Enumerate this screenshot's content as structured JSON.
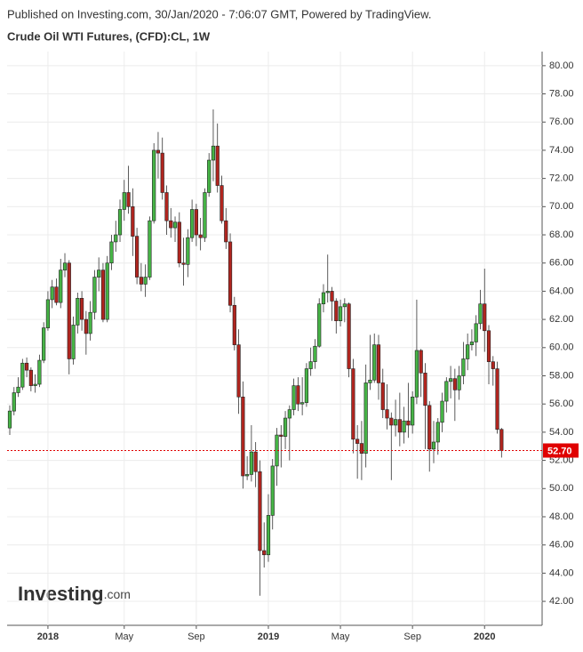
{
  "header": {
    "published": "Published on Investing.com, 30/Jan/2020 - 7:06:07 GMT, Powered by TradingView.",
    "instrument": "Crude Oil WTI Futures, (CFD):CL, 1W"
  },
  "logo": {
    "name": "Investing",
    "suffix": ".com"
  },
  "chart_data": {
    "type": "candlestick",
    "categories": [
      null,
      null,
      null,
      null,
      null,
      null,
      null,
      null,
      null,
      "2018",
      null,
      null,
      null,
      null,
      null,
      null,
      null,
      null,
      null,
      null,
      null,
      null,
      null,
      null,
      null,
      null,
      null,
      "May",
      null,
      null,
      null,
      null,
      null,
      null,
      null,
      null,
      null,
      null,
      null,
      null,
      null,
      null,
      null,
      null,
      "Sep",
      null,
      null,
      null,
      null,
      null,
      null,
      null,
      null,
      null,
      null,
      null,
      null,
      null,
      null,
      null,
      null,
      "2019",
      null,
      null,
      null,
      null,
      null,
      null,
      null,
      null,
      null,
      null,
      null,
      null,
      null,
      null,
      null,
      null,
      "May",
      null,
      null,
      null,
      null,
      null,
      null,
      null,
      null,
      null,
      null,
      null,
      null,
      null,
      null,
      null,
      null,
      "Sep",
      null,
      null,
      null,
      null,
      null,
      null,
      null,
      null,
      null,
      null,
      null,
      null,
      null,
      null,
      null,
      null,
      "2020",
      null,
      null,
      null,
      null
    ],
    "open": [
      54.3,
      55.5,
      56.8,
      57.2,
      58.9,
      58.4,
      57.3,
      57.4,
      59.1,
      61.4,
      63.4,
      64.3,
      63.2,
      65.5,
      66.0,
      59.2,
      61.6,
      63.5,
      62.0,
      61.0,
      62.5,
      65.0,
      65.5,
      62.0,
      66.0,
      67.5,
      68.0,
      69.8,
      71.0,
      70.0,
      67.9,
      65.0,
      64.5,
      65.0,
      69.0,
      74.0,
      73.8,
      71.0,
      69.0,
      68.5,
      68.9,
      66.0,
      65.9,
      67.8,
      69.8,
      68.0,
      67.8,
      71.0,
      73.3,
      74.3,
      71.5,
      69.0,
      67.5,
      63.0,
      60.2,
      56.5,
      50.9,
      51.0,
      52.6,
      51.2,
      45.6,
      45.3,
      48.1,
      51.6,
      53.8,
      53.7,
      55.0,
      55.6,
      57.3,
      56.0,
      56.1,
      58.5,
      59.0,
      60.1,
      63.1,
      63.9,
      64.0,
      63.3,
      61.9,
      62.9,
      63.1,
      58.5,
      53.5,
      53.2,
      52.5,
      57.5,
      57.7,
      60.2,
      57.5,
      55.6,
      55.0,
      54.5,
      54.9,
      54.0,
      54.8,
      54.5,
      56.5,
      59.8,
      58.2,
      55.9,
      52.8,
      53.3,
      54.7,
      56.2,
      57.6,
      57.8,
      57.0,
      58.0,
      59.2,
      60.2,
      60.4,
      61.7,
      63.1,
      61.2,
      59.0,
      58.5,
      54.2
    ],
    "high": [
      55.9,
      57.2,
      57.9,
      59.2,
      59.3,
      58.6,
      58.1,
      59.5,
      61.8,
      64.0,
      64.8,
      64.9,
      66.3,
      66.7,
      66.2,
      62.2,
      63.9,
      64.0,
      62.6,
      63.3,
      65.5,
      66.4,
      66.0,
      66.5,
      68.0,
      69.0,
      70.5,
      71.9,
      72.9,
      71.3,
      68.5,
      66.0,
      65.9,
      69.3,
      74.5,
      75.3,
      74.9,
      71.5,
      69.9,
      69.3,
      69.6,
      67.8,
      68.4,
      70.5,
      70.2,
      69.2,
      71.3,
      73.8,
      76.9,
      75.9,
      72.2,
      69.9,
      68.1,
      63.6,
      61.3,
      57.6,
      52.3,
      54.5,
      53.3,
      52.0,
      47.6,
      49.6,
      52.1,
      54.3,
      54.5,
      55.5,
      55.9,
      57.8,
      57.9,
      57.9,
      58.9,
      60.0,
      60.6,
      63.5,
      64.5,
      66.6,
      64.3,
      63.5,
      63.4,
      63.5,
      63.2,
      59.2,
      54.5,
      54.8,
      58.8,
      60.9,
      61.0,
      60.9,
      58.5,
      57.4,
      55.4,
      56.3,
      56.8,
      55.8,
      57.5,
      56.9,
      63.4,
      59.9,
      58.9,
      56.2,
      54.8,
      55.0,
      56.8,
      57.9,
      58.7,
      58.5,
      58.7,
      60.4,
      61.0,
      61.3,
      62.3,
      64.1,
      65.6,
      61.6,
      59.4,
      59.0,
      54.3
    ],
    "low": [
      53.8,
      55.2,
      56.5,
      57.0,
      57.9,
      56.9,
      56.8,
      57.2,
      58.9,
      61.2,
      62.8,
      63.0,
      62.8,
      65.0,
      58.1,
      58.8,
      61.0,
      61.2,
      59.5,
      60.5,
      62.0,
      64.0,
      61.8,
      61.8,
      65.5,
      66.8,
      67.5,
      69.0,
      69.5,
      66.5,
      64.5,
      64.0,
      63.6,
      64.8,
      68.8,
      72.0,
      70.5,
      68.0,
      67.8,
      67.5,
      65.7,
      64.4,
      65.0,
      67.5,
      67.2,
      66.9,
      67.5,
      70.7,
      71.8,
      71.0,
      68.8,
      67.0,
      62.5,
      59.8,
      55.3,
      50.0,
      50.6,
      50.5,
      50.1,
      42.4,
      44.4,
      44.8,
      47.1,
      50.2,
      51.5,
      52.8,
      52.0,
      55.2,
      55.5,
      55.2,
      55.8,
      58.0,
      58.5,
      60.0,
      62.5,
      63.2,
      61.9,
      61.0,
      61.5,
      61.8,
      57.9,
      52.5,
      50.7,
      50.6,
      51.5,
      57.0,
      57.5,
      56.3,
      55.0,
      54.2,
      50.6,
      53.7,
      53.0,
      53.2,
      53.6,
      53.9,
      56.0,
      56.5,
      52.8,
      51.2,
      51.8,
      52.4,
      54.0,
      55.4,
      56.4,
      54.8,
      56.3,
      57.4,
      58.4,
      59.8,
      59.4,
      61.3,
      59.7,
      57.4,
      57.3,
      53.9,
      52.2
    ],
    "close": [
      55.5,
      56.8,
      57.2,
      58.9,
      58.4,
      57.3,
      57.4,
      59.1,
      61.4,
      63.4,
      64.3,
      63.2,
      65.5,
      66.0,
      59.2,
      61.6,
      63.5,
      62.0,
      61.0,
      62.5,
      65.0,
      65.5,
      62.0,
      66.0,
      67.5,
      68.0,
      69.8,
      71.0,
      70.0,
      67.9,
      65.0,
      64.5,
      65.0,
      69.0,
      74.0,
      73.8,
      71.0,
      69.0,
      68.5,
      68.9,
      66.0,
      65.9,
      67.8,
      69.8,
      68.0,
      67.8,
      71.0,
      73.3,
      74.3,
      71.5,
      69.0,
      67.5,
      63.0,
      60.2,
      56.5,
      50.9,
      51.0,
      52.6,
      51.2,
      45.6,
      45.3,
      48.1,
      51.6,
      53.8,
      53.7,
      55.0,
      55.6,
      57.3,
      56.0,
      56.1,
      58.5,
      59.0,
      60.1,
      63.1,
      63.9,
      64.0,
      63.3,
      61.9,
      62.9,
      63.1,
      58.5,
      53.5,
      53.2,
      52.5,
      57.5,
      57.7,
      60.2,
      57.5,
      55.6,
      55.0,
      54.5,
      54.9,
      54.0,
      54.8,
      54.5,
      56.5,
      59.8,
      58.2,
      55.9,
      52.8,
      53.3,
      54.7,
      56.2,
      57.6,
      57.8,
      57.0,
      58.0,
      59.2,
      60.2,
      60.4,
      61.7,
      63.1,
      61.2,
      59.0,
      58.5,
      54.2,
      52.7
    ],
    "up_color": "#46b446",
    "down_color": "#b0251f",
    "last_price_color": "#e00000",
    "last_price": {
      "value": 52.7,
      "label": "52.70"
    },
    "ylim": [
      40.3,
      81.0
    ],
    "yticks": [
      {
        "value": 42,
        "label": "42.00"
      },
      {
        "value": 44,
        "label": "44.00"
      },
      {
        "value": 46,
        "label": "46.00"
      },
      {
        "value": 48,
        "label": "48.00"
      },
      {
        "value": 50,
        "label": "50.00"
      },
      {
        "value": 52,
        "label": "52.00"
      },
      {
        "value": 54,
        "label": "54.00"
      },
      {
        "value": 56,
        "label": "56.00"
      },
      {
        "value": 58,
        "label": "58.00"
      },
      {
        "value": 60,
        "label": "60.00"
      },
      {
        "value": 62,
        "label": "62.00"
      },
      {
        "value": 64,
        "label": "64.00"
      },
      {
        "value": 66,
        "label": "66.00"
      },
      {
        "value": 68,
        "label": "68.00"
      },
      {
        "value": 70,
        "label": "70.00"
      },
      {
        "value": 72,
        "label": "72.00"
      },
      {
        "value": 74,
        "label": "74.00"
      },
      {
        "value": 76,
        "label": "76.00"
      },
      {
        "value": 78,
        "label": "78.00"
      },
      {
        "value": 80,
        "label": "80.00"
      }
    ],
    "grid": true
  }
}
